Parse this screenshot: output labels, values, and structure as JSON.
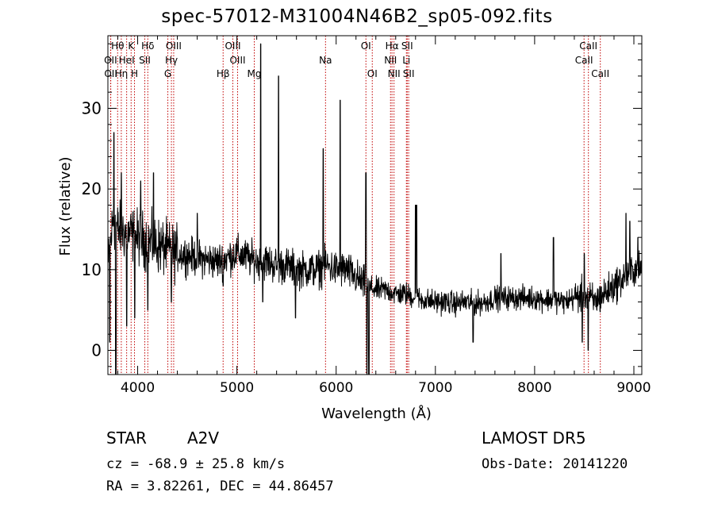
{
  "title": "spec-57012-M31004N46B2_sp05-092.fits",
  "info": {
    "class_label": "STAR",
    "subclass": "A2V",
    "survey": "LAMOST DR5",
    "cz": "cz = -68.9 ± 25.8 km/s",
    "obs_date": "Obs-Date: 20141220",
    "coords": "RA =    3.82261, DEC =  44.86457"
  },
  "chart_data": {
    "type": "line",
    "xlabel": "Wavelength (Å)",
    "ylabel": "Flux (relative)",
    "xlim": [
      3700,
      9080
    ],
    "ylim": [
      -3,
      39
    ],
    "xticks": [
      4000,
      5000,
      6000,
      7000,
      8000,
      9000
    ],
    "yticks": [
      0,
      10,
      20,
      30
    ],
    "grid": false,
    "line_color": "#000000",
    "marker_color": "#c00000",
    "continuum": [
      [
        3700,
        10
      ],
      [
        3750,
        16
      ],
      [
        3800,
        15
      ],
      [
        3900,
        14.5
      ],
      [
        4000,
        14
      ],
      [
        4100,
        13.5
      ],
      [
        4200,
        13
      ],
      [
        4300,
        12.5
      ],
      [
        4400,
        12
      ],
      [
        4500,
        11.8
      ],
      [
        4600,
        11.5
      ],
      [
        4700,
        11.2
      ],
      [
        4800,
        11
      ],
      [
        4900,
        11.5
      ],
      [
        5000,
        12
      ],
      [
        5100,
        11.5
      ],
      [
        5200,
        11
      ],
      [
        5300,
        11
      ],
      [
        5400,
        10.5
      ],
      [
        5500,
        10.5
      ],
      [
        5600,
        10
      ],
      [
        5700,
        10
      ],
      [
        5800,
        10
      ],
      [
        5900,
        10.5
      ],
      [
        6000,
        10
      ],
      [
        6100,
        10
      ],
      [
        6200,
        9
      ],
      [
        6300,
        8
      ],
      [
        6400,
        7.5
      ],
      [
        6500,
        7.5
      ],
      [
        6600,
        7
      ],
      [
        6700,
        7
      ],
      [
        6800,
        6.5
      ],
      [
        6900,
        6.2
      ],
      [
        7000,
        6
      ],
      [
        7100,
        6
      ],
      [
        7200,
        5.8
      ],
      [
        7300,
        6
      ],
      [
        7400,
        5.8
      ],
      [
        7500,
        6
      ],
      [
        7600,
        6.5
      ],
      [
        7700,
        6.5
      ],
      [
        7800,
        6.5
      ],
      [
        7900,
        6.5
      ],
      [
        8000,
        6.5
      ],
      [
        8100,
        6.3
      ],
      [
        8200,
        6.3
      ],
      [
        8300,
        6
      ],
      [
        8400,
        6.5
      ],
      [
        8500,
        7
      ],
      [
        8600,
        6
      ],
      [
        8700,
        7
      ],
      [
        8800,
        8
      ],
      [
        8900,
        9
      ],
      [
        9000,
        10
      ],
      [
        9080,
        10
      ]
    ],
    "features": [
      [
        3718,
        1
      ],
      [
        3760,
        27
      ],
      [
        3780,
        -3
      ],
      [
        3835,
        22
      ],
      [
        3890,
        3
      ],
      [
        3970,
        4
      ],
      [
        4030,
        21
      ],
      [
        4102,
        5
      ],
      [
        4160,
        22
      ],
      [
        4340,
        6
      ],
      [
        4600,
        17
      ],
      [
        4861,
        8
      ],
      [
        5240,
        38
      ],
      [
        5260,
        6
      ],
      [
        5420,
        34
      ],
      [
        5590,
        4
      ],
      [
        5870,
        25
      ],
      [
        6040,
        31
      ],
      [
        6300,
        22
      ],
      [
        6310,
        -3
      ],
      [
        6330,
        -3
      ],
      [
        6800,
        18
      ],
      [
        6810,
        18
      ],
      [
        7380,
        1
      ],
      [
        7660,
        12
      ],
      [
        8190,
        14
      ],
      [
        8480,
        1
      ],
      [
        8500,
        12
      ],
      [
        8540,
        0
      ],
      [
        8920,
        17
      ],
      [
        8960,
        16
      ],
      [
        9040,
        14
      ]
    ],
    "lines": [
      {
        "name": "Hθ",
        "wl": 3798,
        "row": 1
      },
      {
        "name": "K",
        "wl": 3934,
        "row": 1
      },
      {
        "name": "Hδ",
        "wl": 4102,
        "row": 1
      },
      {
        "name": "OIII",
        "wl": 4363,
        "row": 1
      },
      {
        "name": "OIII",
        "wl": 4959,
        "row": 1
      },
      {
        "name": "OI",
        "wl": 6300,
        "row": 1
      },
      {
        "name": "Hα",
        "wl": 6563,
        "row": 1
      },
      {
        "name": "SII",
        "wl": 6716,
        "row": 1
      },
      {
        "name": "CaII",
        "wl": 8542,
        "row": 1
      },
      {
        "name": "OII",
        "wl": 3727,
        "row": 2
      },
      {
        "name": "HeI",
        "wl": 3889,
        "row": 2
      },
      {
        "name": "SII",
        "wl": 4072,
        "row": 2
      },
      {
        "name": "Hγ",
        "wl": 4340,
        "row": 2
      },
      {
        "name": "OIII",
        "wl": 5007,
        "row": 2
      },
      {
        "name": "Na",
        "wl": 5893,
        "row": 2
      },
      {
        "name": "NII",
        "wl": 6548,
        "row": 2
      },
      {
        "name": "Li",
        "wl": 6708,
        "row": 2
      },
      {
        "name": "CaII",
        "wl": 8498,
        "row": 2
      },
      {
        "name": "OII",
        "wl": 3729,
        "row": 3
      },
      {
        "name": "Hη",
        "wl": 3835,
        "row": 3
      },
      {
        "name": "H",
        "wl": 3968,
        "row": 3
      },
      {
        "name": "G",
        "wl": 4304,
        "row": 3
      },
      {
        "name": "Hβ",
        "wl": 4861,
        "row": 3
      },
      {
        "name": "Mg",
        "wl": 5175,
        "row": 3
      },
      {
        "name": "OI",
        "wl": 6364,
        "row": 3
      },
      {
        "name": "NII",
        "wl": 6583,
        "row": 3
      },
      {
        "name": "SII",
        "wl": 6731,
        "row": 3
      },
      {
        "name": "CaII",
        "wl": 8662,
        "row": 3
      }
    ]
  }
}
